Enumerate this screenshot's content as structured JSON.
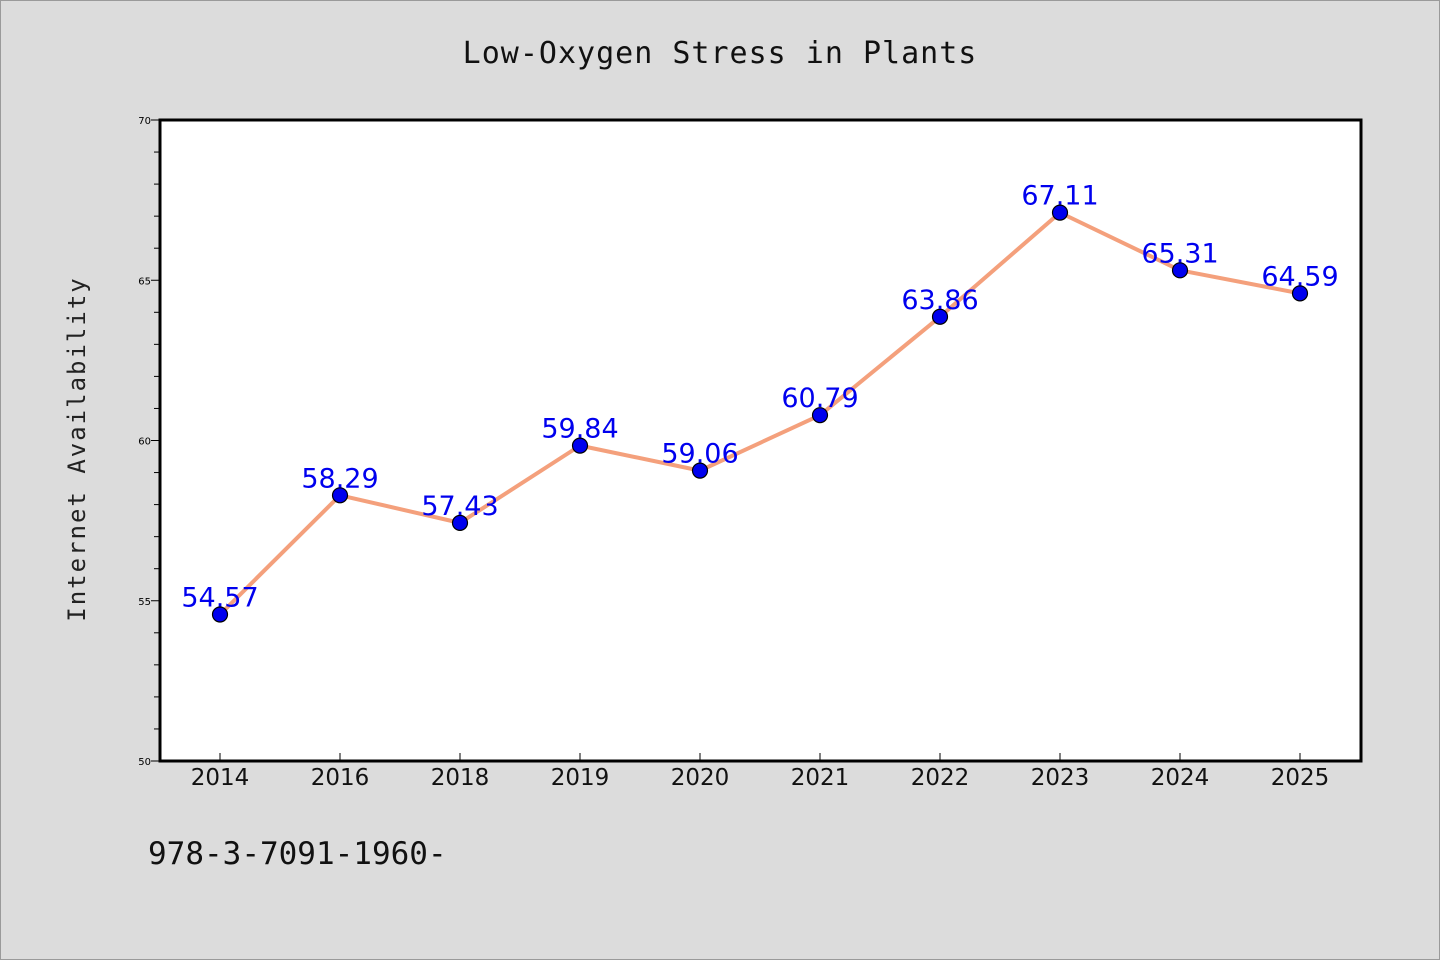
{
  "chart_data": {
    "type": "line",
    "title": "Low-Oxygen Stress in Plants",
    "xlabel": "",
    "ylabel": "Internet Availability",
    "categories": [
      "2014",
      "2016",
      "2018",
      "2019",
      "2020",
      "2021",
      "2022",
      "2023",
      "2024",
      "2025"
    ],
    "series": [
      {
        "values": [
          54.57,
          58.29,
          57.43,
          59.84,
          59.06,
          60.79,
          63.86,
          67.11,
          65.31,
          64.59
        ],
        "labels": [
          "54.57",
          "58.29",
          "57.43",
          "59.84",
          "59.06",
          "60.79",
          "63.86",
          "67.11",
          "65.31",
          "64.59"
        ],
        "line_color": "#f4a07c",
        "marker_color": "#0000ee",
        "label_color": "#0000ee"
      }
    ],
    "ylim": [
      50,
      70
    ],
    "yticks": [
      "50",
      "55",
      "60",
      "65",
      "70"
    ],
    "grid": false,
    "legend": "none"
  },
  "footer_text": "978-3-7091-1960-",
  "colors": {
    "background": "#dcdcdc",
    "plot_background": "#ffffff",
    "axis": "#000000"
  }
}
